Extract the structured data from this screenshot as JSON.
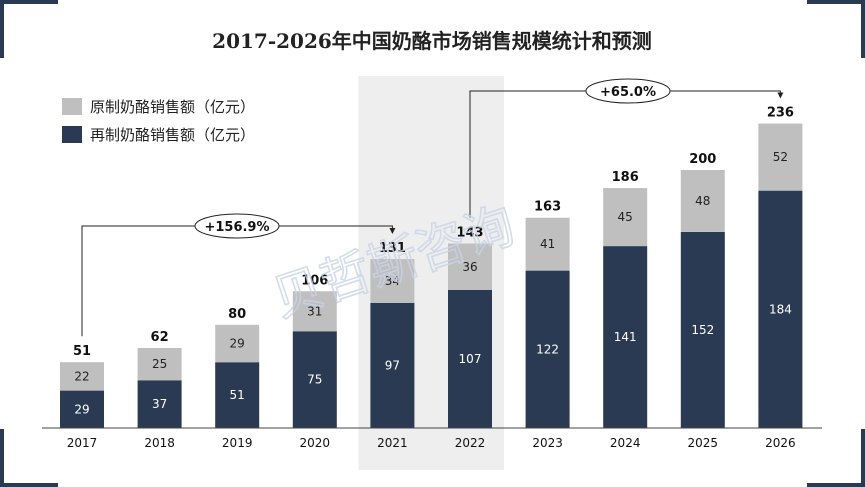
{
  "chart_data": {
    "type": "bar",
    "stacked": true,
    "title": "2017-2026年中国奶酪市场销售规模统计和预测",
    "categories": [
      "2017",
      "2018",
      "2019",
      "2020",
      "2021",
      "2022",
      "2023",
      "2024",
      "2025",
      "2026"
    ],
    "series": [
      {
        "name": "再制奶酪销售额（亿元）",
        "values": [
          29,
          37,
          51,
          75,
          97,
          107,
          122,
          141,
          152,
          184
        ],
        "color": "#2a3a52"
      },
      {
        "name": "原制奶酪销售额（亿元）",
        "values": [
          22,
          25,
          29,
          31,
          34,
          36,
          41,
          45,
          48,
          52
        ],
        "color": "#bfbfbf"
      }
    ],
    "totals": [
      "51",
      "62",
      "80",
      "106",
      "131",
      "143",
      "163",
      "186",
      "200",
      "236"
    ],
    "ylim": [
      0,
      250
    ],
    "highlight_categories": [
      "2021",
      "2022"
    ],
    "annotations": [
      {
        "label": "+156.9%",
        "from": "2017",
        "to": "2021"
      },
      {
        "label": "+65.0%",
        "from": "2022",
        "to": "2026"
      }
    ],
    "legend_position": "top-left",
    "grid": false
  },
  "watermark": "贝哲斯咨询"
}
